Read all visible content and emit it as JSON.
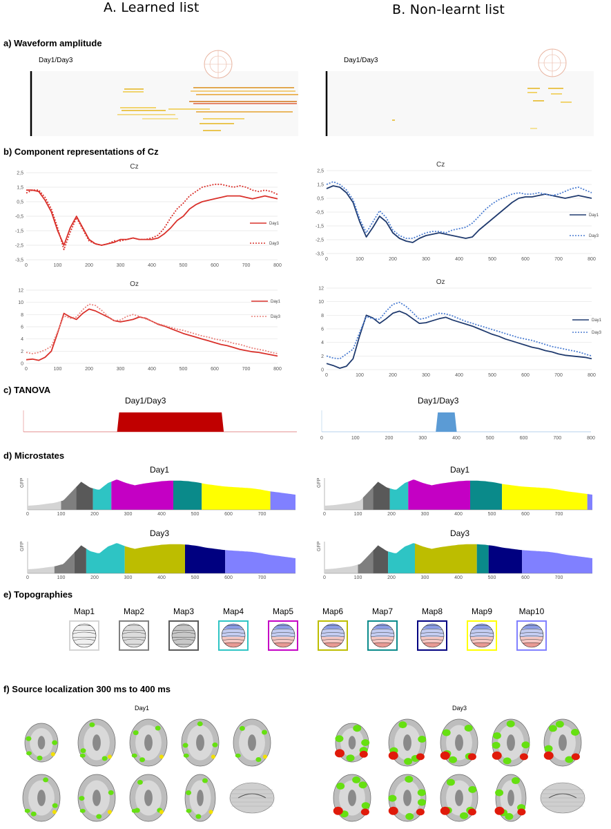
{
  "columns": {
    "a_title": "A. Learned list",
    "b_title": "B. Non-learnt list"
  },
  "sections": {
    "a": "a) Waveform amplitude",
    "b": "b) Component representations of Cz",
    "c": "c) TANOVA",
    "d": "d) Microstates",
    "e": "e) Topographies",
    "f": "f) Source localization  300 ms to 400 ms"
  },
  "waveform": {
    "left_label": "Day1/Day3",
    "right_label": "Day1/Day3"
  },
  "colors": {
    "learned": "#d9302a",
    "nonlearnt": "#1f3a6e",
    "nonlearnt_dot": "#4a7cd1",
    "tanova_left": "#c00000",
    "tanova_right": "#5b9bd5",
    "ms1": "#d4d4d4",
    "ms2": "#7f7f7f",
    "ms3": "#595959",
    "ms4": "#2ec4c4",
    "ms5": "#c400c4",
    "ms6": "#bdbd00",
    "ms7": "#0a8a8a",
    "ms8": "#000080",
    "ms9": "#ffff00",
    "ms10": "#8080ff"
  },
  "chart_data": [
    {
      "id": "cz_learned",
      "type": "line",
      "title": "Cz",
      "xlim": [
        0,
        800
      ],
      "ylim": [
        -3.5,
        2.5
      ],
      "xticks": [
        "0",
        "100",
        "200",
        "300",
        "400",
        "500",
        "600",
        "700",
        "800"
      ],
      "yticks": [
        "2,5",
        "1,5",
        "0,5",
        "-0,5",
        "-1,5",
        "-2,5",
        "-3,5"
      ],
      "series": [
        {
          "name": "Day1",
          "style": "solid",
          "x": [
            0,
            20,
            40,
            60,
            80,
            100,
            120,
            140,
            160,
            180,
            200,
            220,
            240,
            260,
            280,
            300,
            320,
            340,
            360,
            380,
            400,
            420,
            440,
            460,
            480,
            500,
            520,
            540,
            560,
            580,
            600,
            620,
            640,
            660,
            680,
            700,
            720,
            740,
            760,
            780,
            800
          ],
          "values": [
            1.3,
            1.3,
            1.2,
            0.6,
            -0.2,
            -1.5,
            -2.5,
            -1.3,
            -0.5,
            -1.3,
            -2.1,
            -2.4,
            -2.5,
            -2.4,
            -2.3,
            -2.1,
            -2.1,
            -2.0,
            -2.1,
            -2.1,
            -2.1,
            -2.0,
            -1.7,
            -1.3,
            -0.8,
            -0.5,
            0.0,
            0.3,
            0.5,
            0.6,
            0.7,
            0.8,
            0.9,
            0.9,
            0.9,
            0.8,
            0.7,
            0.8,
            0.9,
            0.8,
            0.7
          ]
        },
        {
          "name": "Day3",
          "style": "dotted",
          "x": [
            0,
            20,
            40,
            60,
            80,
            100,
            120,
            140,
            160,
            180,
            200,
            220,
            240,
            260,
            280,
            300,
            320,
            340,
            360,
            380,
            400,
            420,
            440,
            460,
            480,
            500,
            520,
            540,
            560,
            580,
            600,
            620,
            640,
            660,
            680,
            700,
            720,
            740,
            760,
            780,
            800
          ],
          "values": [
            1.1,
            1.3,
            1.3,
            0.8,
            0.0,
            -1.3,
            -2.8,
            -1.6,
            -0.6,
            -1.4,
            -2.2,
            -2.4,
            -2.5,
            -2.4,
            -2.2,
            -2.2,
            -2.1,
            -2.0,
            -2.1,
            -2.1,
            -2.0,
            -1.8,
            -1.3,
            -0.6,
            0.0,
            0.4,
            0.9,
            1.2,
            1.5,
            1.6,
            1.7,
            1.7,
            1.6,
            1.5,
            1.6,
            1.5,
            1.3,
            1.2,
            1.3,
            1.2,
            1.0
          ]
        }
      ]
    },
    {
      "id": "oz_learned",
      "type": "line",
      "title": "Oz",
      "xlim": [
        0,
        800
      ],
      "ylim": [
        0,
        12
      ],
      "xticks": [
        "0",
        "100",
        "200",
        "300",
        "400",
        "500",
        "600",
        "700",
        "800"
      ],
      "yticks": [
        "12",
        "10",
        "8",
        "6",
        "4",
        "2",
        "0"
      ],
      "series": [
        {
          "name": "Day1",
          "style": "solid",
          "x": [
            0,
            20,
            40,
            60,
            80,
            100,
            120,
            140,
            160,
            180,
            200,
            220,
            240,
            260,
            280,
            300,
            320,
            340,
            360,
            380,
            400,
            420,
            440,
            460,
            480,
            500,
            520,
            540,
            560,
            580,
            600,
            620,
            640,
            660,
            680,
            700,
            720,
            740,
            760,
            780,
            800
          ],
          "values": [
            0.6,
            0.7,
            0.5,
            1.0,
            2.0,
            5.0,
            8.2,
            7.6,
            7.2,
            8.2,
            8.9,
            8.6,
            8.1,
            7.6,
            7.0,
            6.8,
            7.0,
            7.2,
            7.6,
            7.4,
            6.9,
            6.4,
            6.1,
            5.7,
            5.3,
            4.9,
            4.6,
            4.3,
            4.0,
            3.7,
            3.4,
            3.1,
            2.9,
            2.6,
            2.3,
            2.1,
            1.9,
            1.8,
            1.6,
            1.4,
            1.2
          ]
        },
        {
          "name": "Day3",
          "style": "dotted",
          "x": [
            0,
            20,
            40,
            60,
            80,
            100,
            120,
            140,
            160,
            180,
            200,
            220,
            240,
            260,
            280,
            300,
            320,
            340,
            360,
            380,
            400,
            420,
            440,
            460,
            480,
            500,
            520,
            540,
            560,
            580,
            600,
            620,
            640,
            660,
            680,
            700,
            720,
            740,
            760,
            780,
            800
          ],
          "values": [
            1.8,
            1.6,
            1.8,
            2.2,
            2.8,
            5.2,
            7.8,
            7.4,
            7.6,
            8.8,
            9.7,
            9.5,
            8.7,
            7.7,
            7.0,
            7.1,
            7.7,
            8.0,
            7.7,
            7.3,
            6.9,
            6.5,
            6.2,
            5.9,
            5.6,
            5.4,
            5.1,
            4.8,
            4.5,
            4.3,
            4.0,
            3.8,
            3.6,
            3.3,
            3.1,
            2.8,
            2.5,
            2.3,
            2.1,
            1.8,
            1.6
          ]
        }
      ]
    },
    {
      "id": "cz_nonlearnt",
      "type": "line",
      "title": "Cz",
      "xlim": [
        0,
        800
      ],
      "ylim": [
        -3.5,
        2.5
      ],
      "xticks": [
        "0",
        "100",
        "200",
        "300",
        "400",
        "500",
        "600",
        "700",
        "800"
      ],
      "yticks": [
        "2,5",
        "1,5",
        "0,5",
        "-0,5",
        "-1,5",
        "-2,5",
        "-3,5"
      ],
      "series": [
        {
          "name": "Day1",
          "style": "solid",
          "x": [
            0,
            20,
            40,
            60,
            80,
            100,
            120,
            140,
            160,
            180,
            200,
            220,
            240,
            260,
            280,
            300,
            320,
            340,
            360,
            380,
            400,
            420,
            440,
            460,
            480,
            500,
            520,
            540,
            560,
            580,
            600,
            620,
            640,
            660,
            680,
            700,
            720,
            740,
            760,
            780,
            800
          ],
          "values": [
            1.2,
            1.4,
            1.3,
            0.9,
            0.2,
            -1.2,
            -2.3,
            -1.6,
            -0.8,
            -1.2,
            -2.0,
            -2.4,
            -2.6,
            -2.7,
            -2.4,
            -2.2,
            -2.1,
            -2.0,
            -2.1,
            -2.2,
            -2.3,
            -2.4,
            -2.3,
            -1.8,
            -1.4,
            -1.0,
            -0.6,
            -0.2,
            0.2,
            0.5,
            0.6,
            0.6,
            0.7,
            0.8,
            0.7,
            0.6,
            0.5,
            0.6,
            0.7,
            0.6,
            0.5
          ]
        },
        {
          "name": "Day3",
          "style": "dotted",
          "x": [
            0,
            20,
            40,
            60,
            80,
            100,
            120,
            140,
            160,
            180,
            200,
            220,
            240,
            260,
            280,
            300,
            320,
            340,
            360,
            380,
            400,
            420,
            440,
            460,
            480,
            500,
            520,
            540,
            560,
            580,
            600,
            620,
            640,
            660,
            680,
            700,
            720,
            740,
            760,
            780,
            800
          ],
          "values": [
            1.5,
            1.7,
            1.5,
            1.1,
            0.4,
            -1.0,
            -2.0,
            -1.2,
            -0.4,
            -0.9,
            -1.8,
            -2.2,
            -2.4,
            -2.4,
            -2.2,
            -2.0,
            -1.9,
            -1.9,
            -2.0,
            -1.8,
            -1.7,
            -1.6,
            -1.3,
            -0.8,
            -0.3,
            0.1,
            0.4,
            0.6,
            0.8,
            0.9,
            0.8,
            0.8,
            0.9,
            0.8,
            0.7,
            0.8,
            1.0,
            1.2,
            1.3,
            1.1,
            0.9
          ]
        }
      ]
    },
    {
      "id": "oz_nonlearnt",
      "type": "line",
      "title": "Oz",
      "xlim": [
        0,
        800
      ],
      "ylim": [
        0,
        12
      ],
      "xticks": [
        "0",
        "100",
        "200",
        "300",
        "400",
        "500",
        "600",
        "700",
        "800"
      ],
      "yticks": [
        "12",
        "10",
        "8",
        "6",
        "4",
        "2",
        "0"
      ],
      "series": [
        {
          "name": "Day1",
          "style": "solid",
          "x": [
            0,
            20,
            40,
            60,
            80,
            100,
            120,
            140,
            160,
            180,
            200,
            220,
            240,
            260,
            280,
            300,
            320,
            340,
            360,
            380,
            400,
            420,
            440,
            460,
            480,
            500,
            520,
            540,
            560,
            580,
            600,
            620,
            640,
            660,
            680,
            700,
            720,
            740,
            760,
            780,
            800
          ],
          "values": [
            0.9,
            0.6,
            0.2,
            0.5,
            1.6,
            5.0,
            8.0,
            7.6,
            6.8,
            7.5,
            8.3,
            8.6,
            8.2,
            7.5,
            6.8,
            6.9,
            7.2,
            7.5,
            7.7,
            7.3,
            7.0,
            6.7,
            6.4,
            6.0,
            5.6,
            5.2,
            4.9,
            4.5,
            4.2,
            3.9,
            3.6,
            3.3,
            3.1,
            2.8,
            2.6,
            2.3,
            2.1,
            2.0,
            1.9,
            1.8,
            1.6
          ]
        },
        {
          "name": "Day3",
          "style": "dotted",
          "x": [
            0,
            20,
            40,
            60,
            80,
            100,
            120,
            140,
            160,
            180,
            200,
            220,
            240,
            260,
            280,
            300,
            320,
            340,
            360,
            380,
            400,
            420,
            440,
            460,
            480,
            500,
            520,
            540,
            560,
            580,
            600,
            620,
            640,
            660,
            680,
            700,
            720,
            740,
            760,
            780,
            800
          ],
          "values": [
            2.0,
            1.7,
            1.6,
            2.3,
            3.0,
            5.5,
            7.8,
            7.5,
            7.4,
            8.6,
            9.6,
            9.9,
            9.3,
            8.4,
            7.4,
            7.6,
            8.0,
            8.3,
            8.2,
            7.9,
            7.5,
            7.1,
            6.8,
            6.5,
            6.2,
            5.9,
            5.6,
            5.3,
            5.0,
            4.7,
            4.5,
            4.3,
            4.0,
            3.7,
            3.4,
            3.2,
            3.0,
            2.8,
            2.6,
            2.3,
            2.0
          ]
        }
      ]
    },
    {
      "id": "tanova_learned",
      "type": "bar",
      "title": "Day1/Day3",
      "xlim": [
        0,
        800
      ],
      "significant_from_ms": 280,
      "significant_to_ms": 580
    },
    {
      "id": "tanova_nonlearnt",
      "type": "bar",
      "title": "Day1/Day3",
      "xlim": [
        0,
        800
      ],
      "significant_from_ms": 345,
      "significant_to_ms": 395,
      "xticks": [
        "0",
        "100",
        "200",
        "300",
        "400",
        "500",
        "600",
        "700",
        "800"
      ]
    }
  ],
  "microstates": {
    "xticks": [
      "0",
      "100",
      "200",
      "300",
      "400",
      "500",
      "600",
      "700"
    ],
    "ylabel": "GFP",
    "panels": [
      {
        "label": "Day1",
        "side": "left",
        "segments": [
          [
            0,
            100,
            1
          ],
          [
            100,
            145,
            2
          ],
          [
            145,
            195,
            3
          ],
          [
            195,
            250,
            4
          ],
          [
            250,
            435,
            5
          ],
          [
            435,
            520,
            7
          ],
          [
            520,
            725,
            9
          ],
          [
            725,
            800,
            10
          ]
        ]
      },
      {
        "label": "Day3",
        "side": "left",
        "segments": [
          [
            0,
            80,
            1
          ],
          [
            80,
            140,
            2
          ],
          [
            140,
            175,
            3
          ],
          [
            175,
            290,
            4
          ],
          [
            290,
            470,
            6
          ],
          [
            470,
            590,
            8
          ],
          [
            590,
            800,
            10
          ]
        ]
      },
      {
        "label": "Day1",
        "side": "right",
        "segments": [
          [
            0,
            115,
            1
          ],
          [
            115,
            145,
            2
          ],
          [
            145,
            195,
            3
          ],
          [
            195,
            250,
            4
          ],
          [
            250,
            435,
            5
          ],
          [
            435,
            530,
            7
          ],
          [
            530,
            785,
            9
          ],
          [
            785,
            800,
            10
          ]
        ]
      },
      {
        "label": "Day3",
        "side": "right",
        "segments": [
          [
            0,
            100,
            1
          ],
          [
            100,
            145,
            2
          ],
          [
            145,
            190,
            3
          ],
          [
            190,
            270,
            4
          ],
          [
            270,
            455,
            6
          ],
          [
            455,
            490,
            7
          ],
          [
            490,
            590,
            8
          ],
          [
            590,
            800,
            10
          ]
        ]
      }
    ],
    "gfp": [
      0.35,
      0.4,
      0.5,
      0.6,
      0.8,
      1.6,
      2.4,
      1.9,
      1.7,
      2.3,
      2.6,
      2.3,
      2.1,
      2.25,
      2.35,
      2.45,
      2.5,
      2.5,
      2.45,
      2.35,
      2.2,
      2.1,
      2.0,
      1.95,
      1.9,
      1.85,
      1.75,
      1.6,
      1.5,
      1.4,
      1.3
    ]
  },
  "topographies": {
    "maps": [
      {
        "label": "Map1",
        "color": "#d4d4d4",
        "kind": "gray"
      },
      {
        "label": "Map2",
        "color": "#7f7f7f",
        "kind": "gray"
      },
      {
        "label": "Map3",
        "color": "#595959",
        "kind": "gray"
      },
      {
        "label": "Map4",
        "color": "#2ec4c4",
        "kind": "color"
      },
      {
        "label": "Map5",
        "color": "#c400c4",
        "kind": "color"
      },
      {
        "label": "Map6",
        "color": "#bdbd00",
        "kind": "color"
      },
      {
        "label": "Map7",
        "color": "#0a8a8a",
        "kind": "color"
      },
      {
        "label": "Map8",
        "color": "#000080",
        "kind": "color"
      },
      {
        "label": "Map9",
        "color": "#ffff00",
        "kind": "color"
      },
      {
        "label": "Map10",
        "color": "#8080ff",
        "kind": "color"
      }
    ]
  },
  "source": {
    "left_label": "Day1",
    "right_label": "Day3"
  }
}
